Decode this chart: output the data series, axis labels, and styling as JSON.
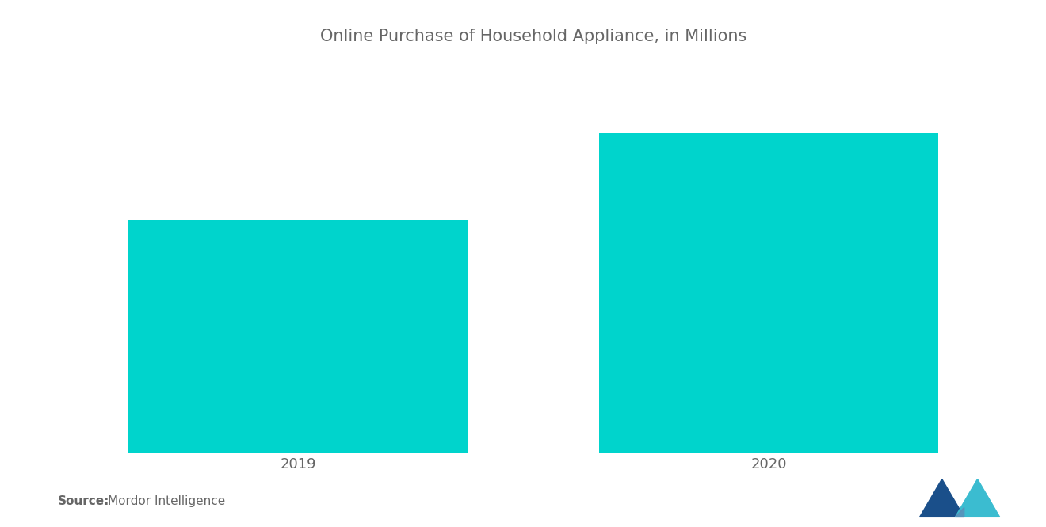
{
  "title": "Online Purchase of Household Appliance, in Millions",
  "title_color": "#666666",
  "title_fontsize": 15,
  "categories": [
    "2019",
    "2020"
  ],
  "values": [
    60,
    82
  ],
  "bar_color": "#00D4CC",
  "bar_width": 0.72,
  "ylim": [
    0,
    100
  ],
  "xlim": [
    -0.5,
    1.5
  ],
  "background_color": "#ffffff",
  "tick_label_color": "#666666",
  "tick_label_fontsize": 13,
  "source_bold": "Source:",
  "source_normal": "Mordor Intelligence",
  "source_fontsize": 11,
  "source_color": "#666666"
}
